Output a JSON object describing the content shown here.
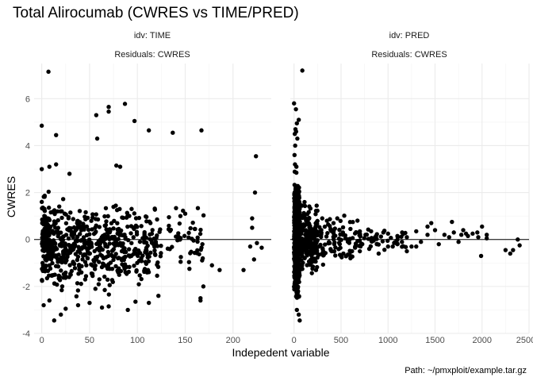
{
  "title": "Total Alirocumab (CWRES vs TIME/PRED)",
  "xlabel": "Indepedent variable",
  "ylabel": "CWRES",
  "caption": "Path: ~/pmxploit/example.tar.gz",
  "colors": {
    "points": "#000000",
    "grid": "#ebebeb",
    "hline": "#000000"
  },
  "chart_data": [
    {
      "type": "scatter",
      "strip_top": "idv: TIME",
      "strip_bottom": "Residuals: CWRES",
      "xlim": [
        -8,
        240
      ],
      "ylim": [
        -4,
        7.5
      ],
      "xticks": [
        0,
        50,
        100,
        150,
        200
      ],
      "yticks": [
        -4,
        -2,
        0,
        2,
        4,
        6
      ],
      "hline": 0,
      "grid": true,
      "highlighted_points": [
        [
          7,
          7.15
        ],
        [
          0,
          4.85
        ],
        [
          15,
          4.45
        ],
        [
          57,
          5.3
        ],
        [
          58,
          4.3
        ],
        [
          70,
          5.65
        ],
        [
          70,
          5.45
        ],
        [
          87,
          5.78
        ],
        [
          97,
          5.05
        ],
        [
          112,
          4.65
        ],
        [
          137,
          4.55
        ],
        [
          167,
          4.65
        ],
        [
          8,
          3.1
        ],
        [
          15,
          3.2
        ],
        [
          0,
          3.0
        ],
        [
          78,
          3.15
        ],
        [
          82,
          3.1
        ],
        [
          29,
          2.8
        ],
        [
          224,
          3.55
        ],
        [
          223,
          2.0
        ],
        [
          220,
          0.9
        ],
        [
          220,
          0.5
        ],
        [
          225,
          -0.15
        ],
        [
          230,
          -0.35
        ],
        [
          222,
          -0.85
        ],
        [
          218,
          -0.3
        ],
        [
          211,
          -1.3
        ],
        [
          186,
          -1.3
        ],
        [
          178,
          -1.1
        ],
        [
          168,
          -0.2
        ],
        [
          160,
          0.45
        ],
        [
          150,
          1.1
        ],
        [
          145,
          1.0
        ],
        [
          133,
          0.95
        ],
        [
          13,
          -3.45
        ],
        [
          20,
          -3.2
        ],
        [
          25,
          -2.95
        ],
        [
          8,
          -2.6
        ],
        [
          38,
          -2.8
        ],
        [
          50,
          -2.7
        ],
        [
          63,
          -2.9
        ],
        [
          70,
          -2.85
        ],
        [
          90,
          -3.0
        ],
        [
          98,
          -2.65
        ],
        [
          112,
          -2.7
        ],
        [
          122,
          -2.4
        ],
        [
          166,
          -2.6
        ],
        [
          166,
          -2.5
        ],
        [
          169,
          -2.0
        ],
        [
          2,
          -2.8
        ]
      ],
      "dense_clusters": [
        {
          "x": [
            0,
            8
          ],
          "y": [
            -2.6,
            2.7
          ],
          "n": 130
        },
        {
          "x": [
            8,
            30
          ],
          "y": [
            -2.8,
            2.2
          ],
          "n": 130
        },
        {
          "x": [
            30,
            60
          ],
          "y": [
            -2.7,
            2.3
          ],
          "n": 140
        },
        {
          "x": [
            60,
            90
          ],
          "y": [
            -2.8,
            2.3
          ],
          "n": 140
        },
        {
          "x": [
            90,
            125
          ],
          "y": [
            -2.4,
            2.0
          ],
          "n": 110
        },
        {
          "x": [
            125,
            170
          ],
          "y": [
            -1.6,
            1.6
          ],
          "n": 45
        }
      ]
    },
    {
      "type": "scatter",
      "strip_top": "idv: PRED",
      "strip_bottom": "Residuals: CWRES",
      "xlim": [
        -40,
        2500
      ],
      "ylim": [
        -4,
        7.5
      ],
      "xticks": [
        0,
        500,
        1000,
        1500,
        2000,
        2500
      ],
      "yticks": [
        -4,
        -2,
        0,
        2,
        4,
        6
      ],
      "hline": 0,
      "grid": true,
      "highlighted_points": [
        [
          88,
          7.2
        ],
        [
          0,
          5.8
        ],
        [
          20,
          5.55
        ],
        [
          50,
          5.1
        ],
        [
          30,
          4.95
        ],
        [
          15,
          4.7
        ],
        [
          22,
          4.6
        ],
        [
          8,
          4.5
        ],
        [
          35,
          4.3
        ],
        [
          12,
          4.0
        ],
        [
          5,
          3.6
        ],
        [
          10,
          3.2
        ],
        [
          25,
          3.1
        ],
        [
          80,
          0.0
        ],
        [
          300,
          0.9
        ],
        [
          350,
          0.8
        ],
        [
          420,
          0.7
        ],
        [
          460,
          0.9
        ],
        [
          520,
          0.3
        ],
        [
          600,
          0.45
        ],
        [
          650,
          -0.3
        ],
        [
          700,
          0.35
        ],
        [
          760,
          0.2
        ],
        [
          820,
          0.35
        ],
        [
          880,
          -0.2
        ],
        [
          950,
          0.3
        ],
        [
          1000,
          0.25
        ],
        [
          1050,
          -0.3
        ],
        [
          1100,
          0.15
        ],
        [
          1150,
          0.3
        ],
        [
          1200,
          0.1
        ],
        [
          1300,
          0.35
        ],
        [
          1350,
          -0.1
        ],
        [
          1420,
          0.55
        ],
        [
          1460,
          0.7
        ],
        [
          1540,
          -0.2
        ],
        [
          1600,
          0.2
        ],
        [
          1680,
          0.75
        ],
        [
          1700,
          0.3
        ],
        [
          1750,
          -0.1
        ],
        [
          1800,
          0.4
        ],
        [
          1850,
          0.15
        ],
        [
          1900,
          0.25
        ],
        [
          1950,
          0.3
        ],
        [
          1990,
          -0.7
        ],
        [
          2000,
          0.55
        ],
        [
          2050,
          0.2
        ],
        [
          2250,
          -0.45
        ],
        [
          2300,
          -0.6
        ],
        [
          2380,
          0.0
        ],
        [
          2400,
          -0.25
        ],
        [
          2330,
          -0.45
        ],
        [
          300,
          -0.6
        ],
        [
          400,
          -0.5
        ],
        [
          500,
          -0.7
        ],
        [
          600,
          -0.8
        ],
        [
          700,
          -0.5
        ],
        [
          800,
          -0.4
        ],
        [
          900,
          -0.6
        ],
        [
          1000,
          -0.3
        ],
        [
          1100,
          -0.2
        ],
        [
          1200,
          -0.5
        ],
        [
          1250,
          -0.3
        ],
        [
          1500,
          0.4
        ],
        [
          1300,
          -0.3
        ],
        [
          1420,
          0.2
        ],
        [
          1650,
          0.1
        ],
        [
          1780,
          0.2
        ],
        [
          1830,
          0.25
        ],
        [
          1960,
          0.1
        ],
        [
          2050,
          0.05
        ],
        [
          60,
          -3.45
        ],
        [
          50,
          -3.2
        ],
        [
          30,
          -3.0
        ]
      ],
      "dense_clusters": [
        {
          "x": [
            0,
            60
          ],
          "y": [
            -3.3,
            3.3
          ],
          "n": 520
        },
        {
          "x": [
            60,
            250
          ],
          "y": [
            -1.9,
            2.0
          ],
          "n": 200
        },
        {
          "x": [
            250,
            700
          ],
          "y": [
            -1.2,
            1.2
          ],
          "n": 90
        },
        {
          "x": [
            700,
            1200
          ],
          "y": [
            -0.6,
            0.6
          ],
          "n": 40
        }
      ]
    }
  ]
}
